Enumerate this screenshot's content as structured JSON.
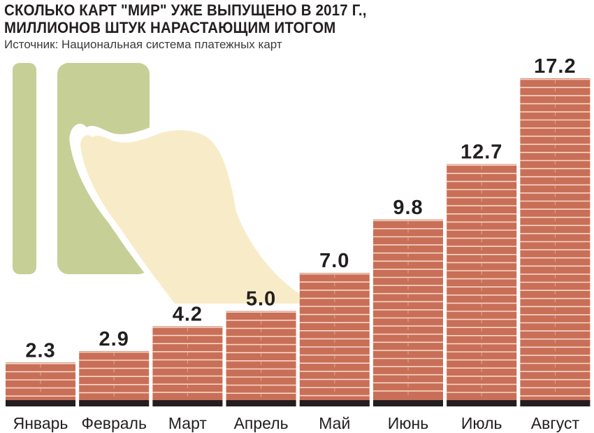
{
  "title": {
    "line1": "СКОЛЬКО КАРТ \"МИР\" УЖЕ ВЫПУЩЕНО В 2017 Г.,",
    "line2": "МИЛЛИОНОВ ШТУК НАРАСТАЮЩИМ ИТОГОМ"
  },
  "source": "Источник: Национальная система платежных карт",
  "colors": {
    "bar_fill": "#c96f57",
    "bar_stripe": "#f3d7c8",
    "bar_base": "#231f20",
    "card_green": "#c6cf96",
    "hand_cream": "#f8ecc8",
    "text": "#231f20"
  },
  "chart_data": {
    "type": "bar",
    "categories": [
      "Январь",
      "Февраль",
      "Март",
      "Апрель",
      "Май",
      "Июнь",
      "Июль",
      "Август"
    ],
    "values": [
      2.3,
      2.9,
      4.2,
      5.0,
      7.0,
      9.8,
      12.7,
      17.2
    ],
    "value_labels": [
      "2.3",
      "2.9",
      "4.2",
      "5.0",
      "7.0",
      "9.8",
      "12.7",
      "17.2"
    ],
    "title": "СКОЛЬКО КАРТ \"МИР\" УЖЕ ВЫПУЩЕНО В 2017 Г., МИЛЛИОНОВ ШТУК НАРАСТАЮЩИМ ИТОГОМ",
    "xlabel": "",
    "ylabel": "",
    "ylim": [
      0,
      17.2
    ],
    "grid": false,
    "legend": "none",
    "illustration": "hand holding card"
  }
}
